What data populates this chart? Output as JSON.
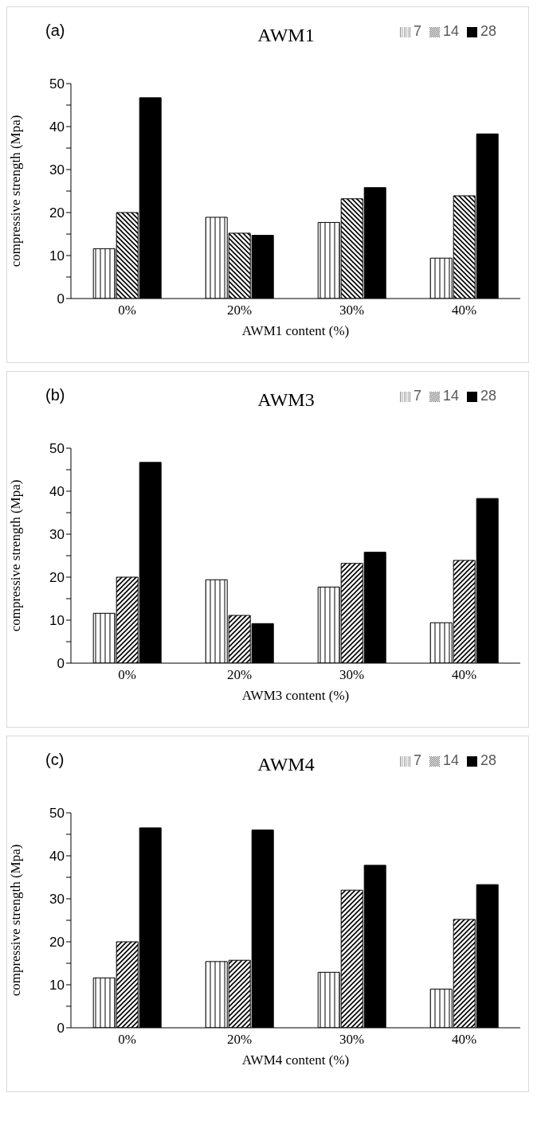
{
  "chart_data": [
    {
      "type": "bar",
      "title": "AWM1",
      "xlabel": "AWM1 content (%)",
      "ylabel": "compressive strength (Mpa)",
      "annotations": [
        "(a)"
      ],
      "categories": [
        "0%",
        "20%",
        "30%",
        "40%"
      ],
      "series": [
        {
          "name": "7",
          "color": "#000000",
          "values": [
            11.6,
            18.9,
            17.7,
            9.4
          ]
        },
        {
          "name": "14",
          "color": "#000000",
          "values": [
            20,
            15.2,
            23.2,
            23.9
          ]
        },
        {
          "name": "28",
          "color": "#000000",
          "values": [
            46.7,
            14.7,
            25.8,
            38.3
          ]
        }
      ],
      "ylim": [
        0,
        50
      ],
      "yticks": [
        0,
        {
          "value": 5,
          "label": null
        },
        10,
        {
          "value": 15,
          "label": null
        },
        20,
        {
          "value": 25,
          "label": null
        },
        30,
        {
          "value": 35,
          "label": null
        },
        40,
        {
          "value": 45,
          "label": null
        },
        50
      ],
      "legend": "top right"
    },
    {
      "type": "bar",
      "title": "AWM3",
      "xlabel": "AWM3 content (%)",
      "ylabel": "compressive strength (Mpa)",
      "annotations": [
        "(b)"
      ],
      "categories": [
        "0%",
        "20%",
        "30%",
        "40%"
      ],
      "series": [
        {
          "name": "7",
          "color": "#000000",
          "values": [
            11.6,
            19.4,
            17.7,
            9.4
          ]
        },
        {
          "name": "14",
          "color": "#000000",
          "values": [
            20,
            11.1,
            23.2,
            23.9
          ]
        },
        {
          "name": "28",
          "color": "#000000",
          "values": [
            46.7,
            9.2,
            25.8,
            38.3
          ]
        }
      ],
      "ylim": [
        0,
        50
      ],
      "yticks": [
        0,
        {
          "value": 5,
          "label": null
        },
        10,
        {
          "value": 15,
          "label": null
        },
        20,
        {
          "value": 25,
          "label": null
        },
        30,
        {
          "value": 35,
          "label": null
        },
        40,
        {
          "value": 45,
          "label": null
        },
        50
      ],
      "legend": "top right"
    },
    {
      "type": "bar",
      "title": "AWM4",
      "xlabel": "AWM4 content (%)",
      "ylabel": "compressive strength (Mpa)",
      "annotations": [
        "(c)"
      ],
      "categories": [
        "0%",
        "20%",
        "30%",
        "40%"
      ],
      "series": [
        {
          "name": "7",
          "color": "#000000",
          "values": [
            11.6,
            15.4,
            12.9,
            9
          ]
        },
        {
          "name": "14",
          "color": "#000000",
          "values": [
            20,
            15.7,
            32,
            25.2
          ]
        },
        {
          "name": "28",
          "color": "#000000",
          "values": [
            46.5,
            46,
            37.8,
            33.3
          ]
        }
      ],
      "ylim": [
        0,
        50
      ],
      "yticks": [
        0,
        {
          "value": 5,
          "label": null
        },
        10,
        {
          "value": 15,
          "label": null
        },
        20,
        {
          "value": 25,
          "label": null
        },
        30,
        {
          "value": 35,
          "label": null
        },
        40,
        {
          "value": 45,
          "label": null
        },
        50
      ],
      "legend": "top right"
    }
  ]
}
